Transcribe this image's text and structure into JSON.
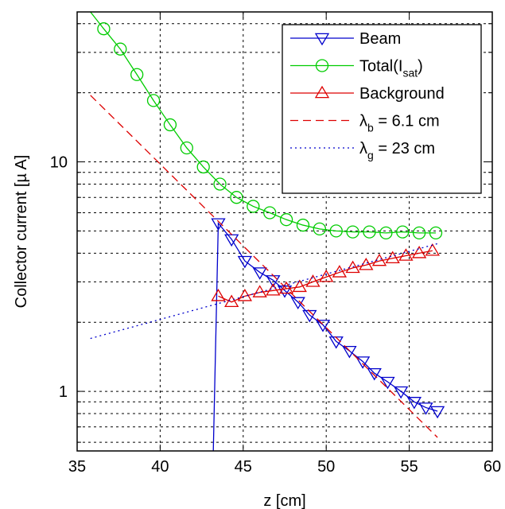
{
  "chart_data": {
    "type": "line",
    "xlabel": "z [cm]",
    "ylabel": "Collector current [µ A]",
    "xlim": [
      35,
      60
    ],
    "ylim": [
      0.55,
      45
    ],
    "yscale": "log",
    "grid": true,
    "legend_position": "top-right",
    "x_ticks": [
      35,
      40,
      45,
      50,
      55,
      60
    ],
    "x_tick_labels": [
      "35",
      "40",
      "45",
      "50",
      "55",
      "60"
    ],
    "y_ticks": [
      1,
      10
    ],
    "y_tick_labels": [
      "1",
      "10"
    ],
    "series": [
      {
        "name": "Beam",
        "color": "#0000cc",
        "marker": "triangle-down",
        "style": "solid",
        "x": [
          43.2,
          43.5,
          44.3,
          45.1,
          46.0,
          46.8,
          47.5,
          48.3,
          49.0,
          49.8,
          50.6,
          51.4,
          52.2,
          52.9,
          53.7,
          54.5,
          55.3,
          56.0,
          56.7
        ],
        "y": [
          0.55,
          5.4,
          4.6,
          3.7,
          3.3,
          3.05,
          2.75,
          2.45,
          2.15,
          1.95,
          1.65,
          1.5,
          1.35,
          1.2,
          1.1,
          1.0,
          0.9,
          0.85,
          0.82
        ],
        "marker_from_index": 1
      },
      {
        "name": "Total(I_sat)",
        "label_main": "Total(I",
        "label_sub": "sat",
        "label_end": ")",
        "color": "#00cc00",
        "marker": "circle",
        "style": "solid",
        "x": [
          35.8,
          36.6,
          37.6,
          38.6,
          39.6,
          40.6,
          41.6,
          42.6,
          43.6,
          44.6,
          45.6,
          46.6,
          47.6,
          48.6,
          49.6,
          50.6,
          51.6,
          52.6,
          53.6,
          54.6,
          55.6,
          56.6
        ],
        "y": [
          45,
          38,
          31,
          24,
          18.5,
          14.5,
          11.5,
          9.5,
          8.0,
          7.0,
          6.4,
          6.0,
          5.6,
          5.3,
          5.1,
          5.0,
          4.95,
          4.95,
          4.9,
          4.95,
          4.9,
          4.9
        ],
        "marker_from_index": 1
      },
      {
        "name": "Background",
        "color": "#dd0000",
        "marker": "triangle-up",
        "style": "solid",
        "x": [
          43.5,
          44.3,
          45.1,
          46.0,
          46.8,
          47.6,
          48.4,
          49.2,
          50.0,
          50.8,
          51.6,
          52.4,
          53.2,
          54.0,
          54.8,
          55.6,
          56.4
        ],
        "y": [
          2.6,
          2.45,
          2.6,
          2.7,
          2.75,
          2.8,
          2.85,
          3.0,
          3.15,
          3.3,
          3.45,
          3.55,
          3.7,
          3.8,
          3.9,
          4.0,
          4.1
        ],
        "marker_from_index": 0
      },
      {
        "name": "λ_b = 6.1 cm",
        "label_main": "λ",
        "label_sub": "b",
        "label_end": " = 6.1 cm",
        "color": "#dd0000",
        "marker": "none",
        "style": "dashed",
        "x": [
          35.8,
          56.7
        ],
        "y": [
          19.5,
          0.63
        ]
      },
      {
        "name": "λ_g = 23 cm",
        "label_main": "λ",
        "label_sub": "g",
        "label_end": " = 23 cm",
        "color": "#0000cc",
        "marker": "none",
        "style": "dotted",
        "x": [
          35.8,
          56.7
        ],
        "y": [
          1.7,
          4.4
        ]
      }
    ]
  }
}
